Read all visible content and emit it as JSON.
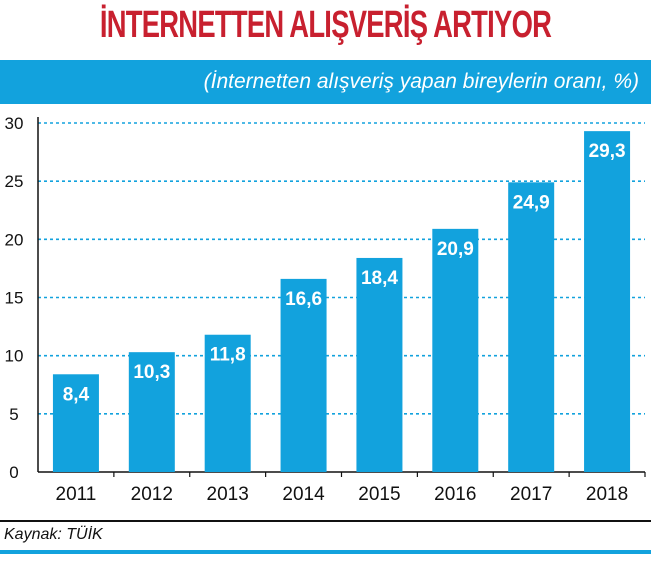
{
  "title": "İNTERNETTEN ALIŞVERİŞ ARTIYOR",
  "subtitle": "(İnternetten alışveriş yapan bireylerin oranı, %)",
  "source": "Kaynak: TÜİK",
  "colors": {
    "title": "#c8202f",
    "bar": "#12a2dd",
    "grid": "#12a2dd",
    "label": "#ffffff"
  },
  "chart_data": {
    "type": "bar",
    "categories": [
      "2011",
      "2012",
      "2013",
      "2014",
      "2015",
      "2016",
      "2017",
      "2018"
    ],
    "values": [
      8.4,
      10.3,
      11.8,
      16.6,
      18.4,
      20.9,
      24.9,
      29.3
    ],
    "value_labels": [
      "8,4",
      "10,3",
      "11,8",
      "16,6",
      "18,4",
      "20,9",
      "24,9",
      "29,3"
    ],
    "ylim": [
      0,
      30
    ],
    "yticks": [
      "0",
      "5",
      "10",
      "15",
      "20",
      "25",
      "30"
    ],
    "grid": true,
    "xlabel": "",
    "ylabel": ""
  }
}
